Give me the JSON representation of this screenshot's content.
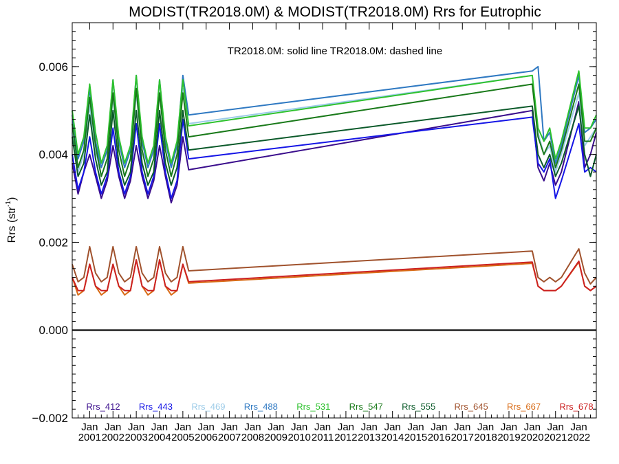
{
  "chart_data": {
    "type": "line",
    "title": "MODIST(TR2018.0M) & MODIST(TR2018.0M)  Rrs for Eutrophic",
    "subtitle": "TR2018.0M: solid line   TR2018.0M: dashed line",
    "ylabel_prefix": "Rrs (str",
    "ylabel_sup": "-1",
    "ylabel_suffix": ")",
    "ylim": [
      -0.002,
      0.007
    ],
    "yticks": [
      {
        "value": -0.002,
        "label": "−0.002"
      },
      {
        "value": 0.0,
        "label": "0.000"
      },
      {
        "value": 0.002,
        "label": "0.002"
      },
      {
        "value": 0.004,
        "label": "0.004"
      },
      {
        "value": 0.006,
        "label": "0.006"
      }
    ],
    "xlim": [
      2000.25,
      2022.75
    ],
    "xticks": [
      {
        "value": 2001,
        "month": "Jan",
        "year": "2001"
      },
      {
        "value": 2002,
        "month": "Jan",
        "year": "2002"
      },
      {
        "value": 2003,
        "month": "Jan",
        "year": "2003"
      },
      {
        "value": 2004,
        "month": "Jan",
        "year": "2004"
      },
      {
        "value": 2005,
        "month": "Jan",
        "year": "2005"
      },
      {
        "value": 2006,
        "month": "Jan",
        "year": "2006"
      },
      {
        "value": 2007,
        "month": "Jan",
        "year": "2007"
      },
      {
        "value": 2008,
        "month": "Jan",
        "year": "2008"
      },
      {
        "value": 2009,
        "month": "Jan",
        "year": "2009"
      },
      {
        "value": 2010,
        "month": "Jan",
        "year": "2010"
      },
      {
        "value": 2011,
        "month": "Jan",
        "year": "2011"
      },
      {
        "value": 2012,
        "month": "Jan",
        "year": "2012"
      },
      {
        "value": 2013,
        "month": "Jan",
        "year": "2013"
      },
      {
        "value": 2014,
        "month": "Jan",
        "year": "2014"
      },
      {
        "value": 2015,
        "month": "Jan",
        "year": "2015"
      },
      {
        "value": 2016,
        "month": "Jan",
        "year": "2016"
      },
      {
        "value": 2017,
        "month": "Jan",
        "year": "2017"
      },
      {
        "value": 2018,
        "month": "Jan",
        "year": "2018"
      },
      {
        "value": 2019,
        "month": "Jan",
        "year": "2019"
      },
      {
        "value": 2020,
        "month": "Jan",
        "year": "2020"
      },
      {
        "value": 2021,
        "month": "Jan",
        "year": "2021"
      },
      {
        "value": 2022,
        "month": "Jan",
        "year": "2022"
      }
    ],
    "grid": false,
    "zero_line": 0.0,
    "legend_position": "bottom",
    "x": [
      2000.25,
      2000.5,
      2000.75,
      2001.0,
      2001.25,
      2001.5,
      2001.75,
      2002.0,
      2002.25,
      2002.5,
      2002.75,
      2003.0,
      2003.25,
      2003.5,
      2003.75,
      2004.0,
      2004.25,
      2004.5,
      2004.75,
      2005.0,
      2005.25,
      2020.0,
      2020.25,
      2020.5,
      2020.75,
      2021.0,
      2021.25,
      2022.0,
      2022.25,
      2022.5,
      2022.75
    ],
    "series": [
      {
        "name": "Rrs_412",
        "color": "#3a0d8c",
        "values": [
          0.0038,
          0.0031,
          0.0036,
          0.004,
          0.0035,
          0.003,
          0.0034,
          0.0042,
          0.0035,
          0.003,
          0.0034,
          0.0042,
          0.0035,
          0.003,
          0.0034,
          0.0042,
          0.0035,
          0.0029,
          0.0033,
          0.0044,
          0.00365,
          0.005,
          0.0037,
          0.0034,
          0.0038,
          0.0033,
          0.0036,
          0.0052,
          0.0037,
          0.004,
          0.0045
        ]
      },
      {
        "name": "Rrs_443",
        "color": "#1515e6",
        "values": [
          0.004,
          0.0032,
          0.0036,
          0.0044,
          0.0036,
          0.0031,
          0.0035,
          0.0046,
          0.0036,
          0.0031,
          0.0035,
          0.0047,
          0.0036,
          0.0031,
          0.0035,
          0.0047,
          0.0036,
          0.003,
          0.0034,
          0.0048,
          0.0039,
          0.00485,
          0.0038,
          0.0036,
          0.0039,
          0.003,
          0.0034,
          0.0047,
          0.0036,
          0.0037,
          0.0036
        ]
      },
      {
        "name": "Rrs_469",
        "color": "#9ccbe8",
        "values": [
          0.0045,
          0.0036,
          0.004,
          0.0051,
          0.0041,
          0.0035,
          0.0039,
          0.0053,
          0.0041,
          0.0035,
          0.0039,
          0.0054,
          0.0041,
          0.0035,
          0.0039,
          0.0054,
          0.0041,
          0.0035,
          0.004,
          0.0055,
          0.0047,
          0.0058,
          0.0045,
          0.004,
          0.0042,
          0.0036,
          0.004,
          0.0054,
          0.0042,
          0.0044,
          0.0046
        ]
      },
      {
        "name": "Rrs_488",
        "color": "#2f79c2",
        "values": [
          0.0049,
          0.0039,
          0.0043,
          0.0055,
          0.0043,
          0.0037,
          0.0041,
          0.0057,
          0.0043,
          0.0037,
          0.0041,
          0.0058,
          0.0043,
          0.0037,
          0.0041,
          0.0057,
          0.0043,
          0.0037,
          0.0042,
          0.0058,
          0.0049,
          0.0059,
          0.006,
          0.0043,
          0.0045,
          0.0038,
          0.0042,
          0.0058,
          0.0045,
          0.0046,
          0.0048
        ]
      },
      {
        "name": "Rrs_531",
        "color": "#2ec22e",
        "values": [
          0.005,
          0.004,
          0.0044,
          0.0056,
          0.0045,
          0.0038,
          0.0042,
          0.0057,
          0.0044,
          0.0038,
          0.0042,
          0.0058,
          0.0044,
          0.0038,
          0.0042,
          0.0057,
          0.0044,
          0.0038,
          0.0043,
          0.0057,
          0.00465,
          0.0058,
          0.0046,
          0.0043,
          0.0046,
          0.0039,
          0.0043,
          0.0059,
          0.0046,
          0.0046,
          0.0049
        ]
      },
      {
        "name": "Rrs_547",
        "color": "#1a7a1a",
        "values": [
          0.0047,
          0.0037,
          0.0041,
          0.0053,
          0.0042,
          0.0035,
          0.0039,
          0.0054,
          0.0041,
          0.0035,
          0.0039,
          0.0055,
          0.0041,
          0.0035,
          0.0039,
          0.0054,
          0.0041,
          0.0035,
          0.004,
          0.0054,
          0.0044,
          0.0056,
          0.0044,
          0.004,
          0.0043,
          0.0037,
          0.0041,
          0.0056,
          0.0043,
          0.0043,
          0.0046
        ]
      },
      {
        "name": "Rrs_555",
        "color": "#0b5a2a",
        "values": [
          0.0044,
          0.0035,
          0.0038,
          0.0049,
          0.0039,
          0.0033,
          0.0036,
          0.005,
          0.0038,
          0.0033,
          0.0036,
          0.005,
          0.0038,
          0.0033,
          0.0036,
          0.005,
          0.0038,
          0.0033,
          0.0037,
          0.005,
          0.0041,
          0.0051,
          0.004,
          0.0037,
          0.004,
          0.0035,
          0.0038,
          0.0051,
          0.004,
          0.0035,
          0.004
        ]
      },
      {
        "name": "Rrs_645",
        "color": "#a0522d",
        "values": [
          0.0015,
          0.0011,
          0.0012,
          0.0019,
          0.0013,
          0.0011,
          0.0012,
          0.0019,
          0.0013,
          0.0011,
          0.0012,
          0.0019,
          0.0013,
          0.0011,
          0.0012,
          0.0019,
          0.0013,
          0.0011,
          0.0012,
          0.0019,
          0.00135,
          0.0018,
          0.0012,
          0.0011,
          0.0012,
          0.0011,
          0.0012,
          0.00185,
          0.0013,
          0.00105,
          0.0012
        ]
      },
      {
        "name": "Rrs_667",
        "color": "#d86a14",
        "values": [
          0.0012,
          0.0008,
          0.0009,
          0.0015,
          0.001,
          0.0008,
          0.0009,
          0.0015,
          0.001,
          0.0008,
          0.0009,
          0.0016,
          0.001,
          0.0008,
          0.0009,
          0.0016,
          0.001,
          0.0008,
          0.0009,
          0.0015,
          0.00107,
          0.00152,
          0.001,
          0.0009,
          0.0009,
          0.0009,
          0.001,
          0.00155,
          0.001,
          0.0009,
          0.001
        ]
      },
      {
        "name": "Rrs_678",
        "color": "#cc2222",
        "values": [
          0.0012,
          0.0009,
          0.0009,
          0.0015,
          0.001,
          0.0009,
          0.0009,
          0.0015,
          0.001,
          0.0009,
          0.0009,
          0.0016,
          0.001,
          0.0009,
          0.0009,
          0.0016,
          0.001,
          0.0009,
          0.0009,
          0.0015,
          0.0011,
          0.00155,
          0.001,
          0.0009,
          0.0009,
          0.0009,
          0.001,
          0.00157,
          0.001,
          0.0009,
          0.001
        ]
      }
    ]
  }
}
